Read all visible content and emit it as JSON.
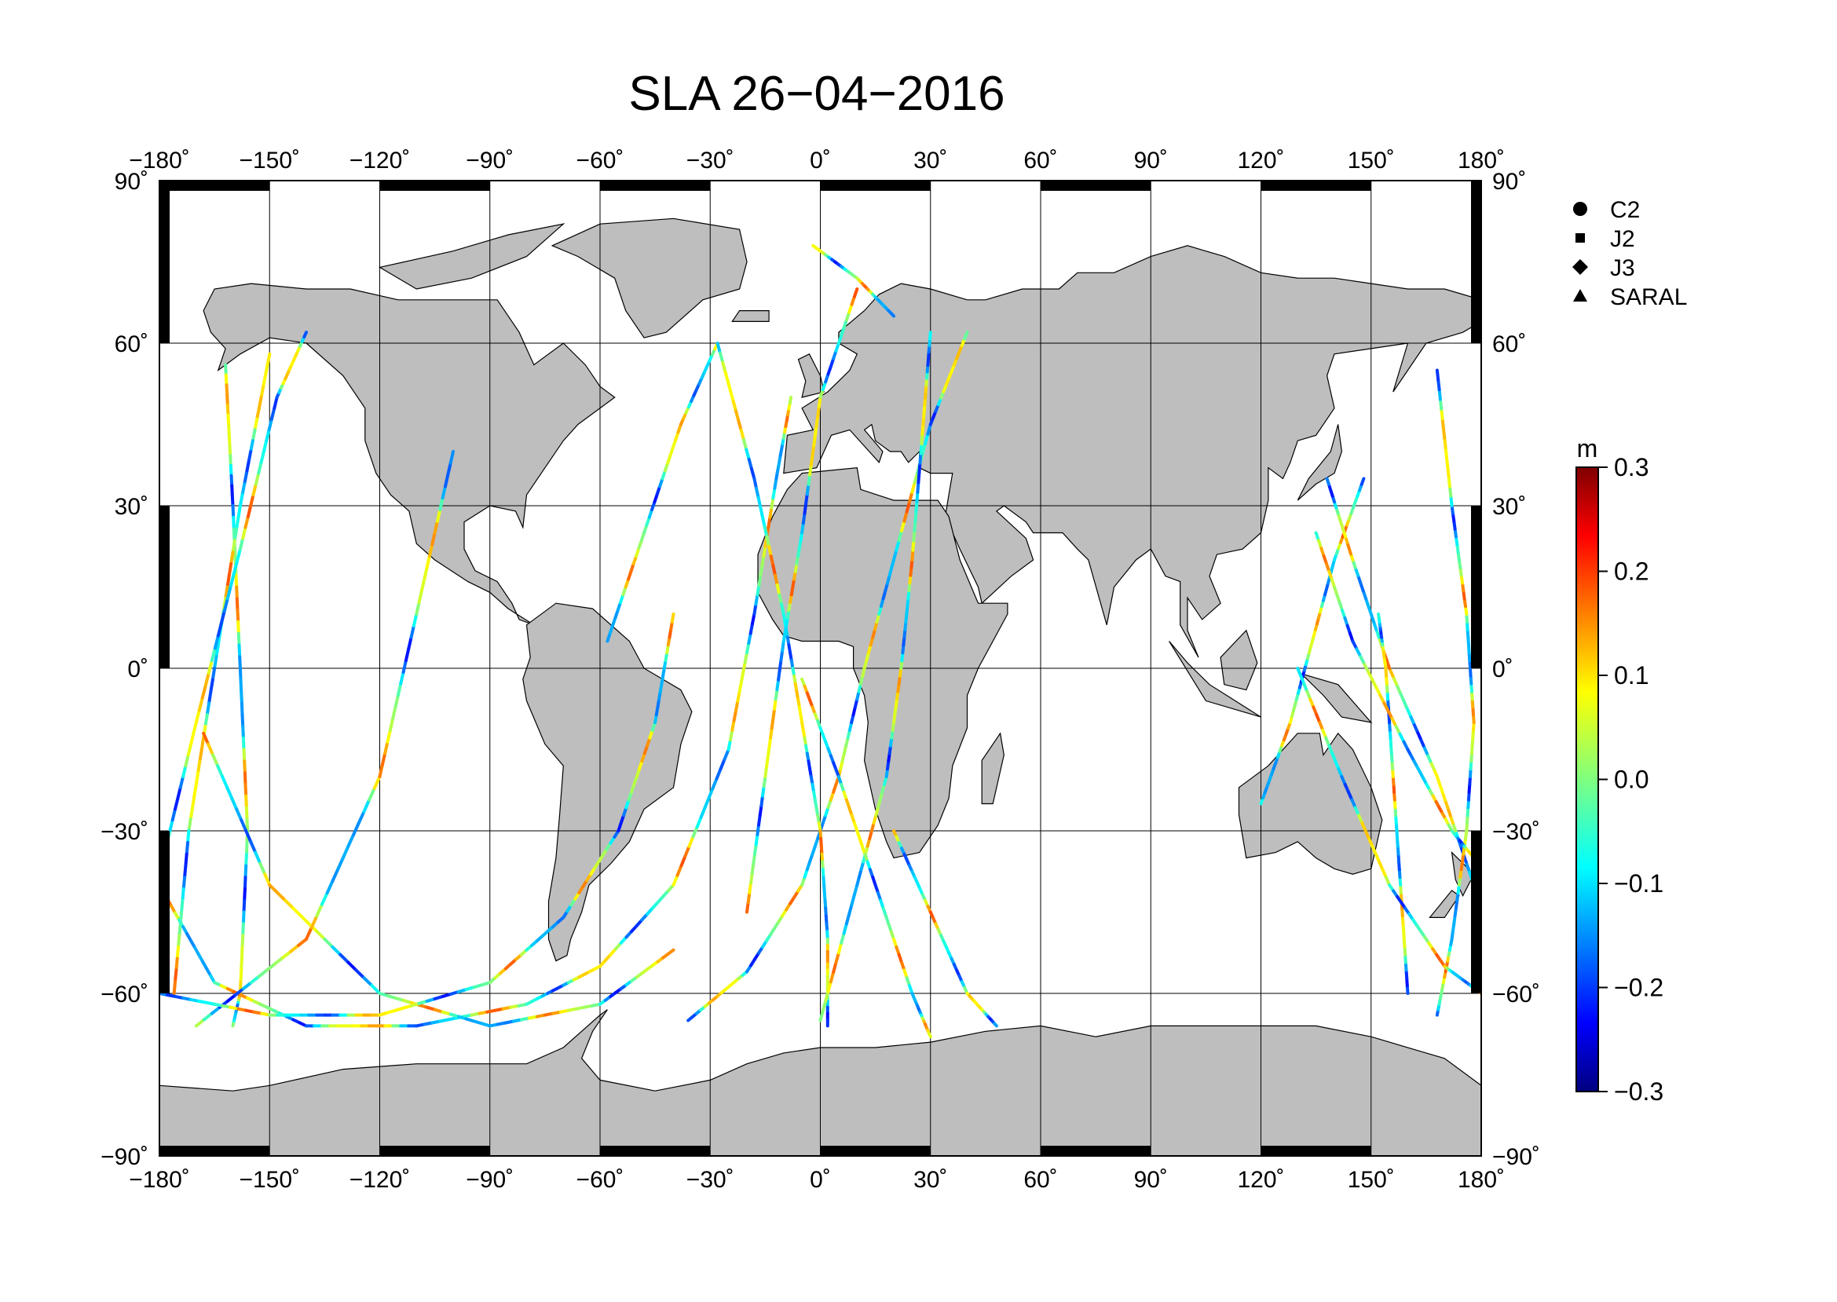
{
  "title": "SLA 26−04−2016",
  "map": {
    "lon_range": [
      -180,
      180
    ],
    "lat_range": [
      -90,
      90
    ],
    "lon_ticks": [
      -180,
      -150,
      -120,
      -90,
      -60,
      -30,
      0,
      30,
      60,
      90,
      120,
      150,
      180
    ],
    "lat_ticks": [
      90,
      60,
      30,
      0,
      -30,
      -60,
      -90
    ],
    "lon_tick_labels": [
      "−180",
      "−150",
      "−120",
      "−90",
      "−60",
      "−30",
      "0",
      "30",
      "60",
      "90",
      "120",
      "150",
      "180"
    ],
    "lat_tick_labels": [
      "90",
      "60",
      "30",
      "0",
      "−30",
      "−60",
      "−90"
    ],
    "degree_symbol": "˚",
    "land_color": "#bebebe",
    "ocean_color": "#ffffff",
    "grid": true
  },
  "legend": {
    "placement": "top-right",
    "items": [
      {
        "label": "C2",
        "symbol": "circle"
      },
      {
        "label": "J2",
        "symbol": "square"
      },
      {
        "label": "J3",
        "symbol": "diamond"
      },
      {
        "label": "SARAL",
        "symbol": "triangle"
      }
    ]
  },
  "colorbar": {
    "unit": "m",
    "range": [
      -0.3,
      0.3
    ],
    "tick_labels": [
      "0.3",
      "0.2",
      "0.1",
      "0.0",
      "−0.1",
      "−0.2",
      "−0.3"
    ],
    "tick_values": [
      0.3,
      0.2,
      0.1,
      0.0,
      -0.1,
      -0.2,
      -0.3
    ]
  },
  "chart_data": {
    "type": "scatter",
    "title": "SLA 26−04−2016",
    "variable": "SLA",
    "unit": "m",
    "xlim": [
      -180,
      180
    ],
    "ylim": [
      -90,
      90
    ],
    "tracks": [
      {
        "pts": [
          [
            -162,
            56
          ],
          [
            -160,
            30
          ],
          [
            -158,
            0
          ],
          [
            -156,
            -30
          ],
          [
            -158,
            -60
          ],
          [
            -160,
            -66
          ]
        ]
      },
      {
        "pts": [
          [
            -150,
            58
          ],
          [
            -158,
            30
          ],
          [
            -165,
            0
          ],
          [
            -172,
            -30
          ],
          [
            -176,
            -60
          ]
        ]
      },
      {
        "pts": [
          [
            -180,
            -40
          ],
          [
            -165,
            -58
          ],
          [
            -140,
            -66
          ],
          [
            -110,
            -66
          ],
          [
            -80,
            -62
          ],
          [
            -60,
            -55
          ],
          [
            -40,
            -40
          ],
          [
            -25,
            -15
          ],
          [
            -18,
            10
          ],
          [
            -12,
            35
          ],
          [
            -8,
            50
          ]
        ]
      },
      {
        "pts": [
          [
            -168,
            -12
          ],
          [
            -150,
            -40
          ],
          [
            -120,
            -60
          ],
          [
            -90,
            -66
          ],
          [
            -60,
            -62
          ],
          [
            -40,
            -52
          ]
        ]
      },
      {
        "pts": [
          [
            -180,
            -38
          ],
          [
            -170,
            -10
          ],
          [
            -158,
            22
          ],
          [
            -148,
            50
          ],
          [
            -140,
            62
          ]
        ]
      },
      {
        "pts": [
          [
            -170,
            -66
          ],
          [
            -140,
            -50
          ],
          [
            -120,
            -20
          ],
          [
            -110,
            10
          ],
          [
            -100,
            40
          ]
        ]
      },
      {
        "pts": [
          [
            -180,
            -60
          ],
          [
            -150,
            -64
          ],
          [
            -120,
            -64
          ],
          [
            -90,
            -58
          ],
          [
            -70,
            -46
          ],
          [
            -55,
            -30
          ],
          [
            -45,
            -10
          ],
          [
            -40,
            10
          ]
        ]
      },
      {
        "pts": [
          [
            -58,
            5
          ],
          [
            -48,
            25
          ],
          [
            -38,
            45
          ],
          [
            -28,
            60
          ]
        ]
      },
      {
        "pts": [
          [
            -36,
            -65
          ],
          [
            -20,
            -56
          ],
          [
            -5,
            -40
          ],
          [
            5,
            -20
          ],
          [
            12,
            0
          ],
          [
            20,
            20
          ],
          [
            30,
            45
          ],
          [
            40,
            62
          ]
        ]
      },
      {
        "pts": [
          [
            -28,
            60
          ],
          [
            -18,
            35
          ],
          [
            -10,
            10
          ],
          [
            -5,
            -10
          ],
          [
            0,
            -30
          ],
          [
            2,
            -50
          ],
          [
            2,
            -66
          ]
        ]
      },
      {
        "pts": [
          [
            0,
            -65
          ],
          [
            10,
            -40
          ],
          [
            18,
            -20
          ],
          [
            22,
            0
          ],
          [
            25,
            20
          ],
          [
            28,
            45
          ],
          [
            30,
            62
          ]
        ]
      },
      {
        "pts": [
          [
            -5,
            -2
          ],
          [
            5,
            -20
          ],
          [
            15,
            -40
          ],
          [
            25,
            -60
          ],
          [
            30,
            -68
          ]
        ]
      },
      {
        "pts": [
          [
            -20,
            -45
          ],
          [
            -15,
            -20
          ],
          [
            -10,
            5
          ],
          [
            -5,
            25
          ],
          [
            0,
            50
          ],
          [
            10,
            70
          ]
        ]
      },
      {
        "pts": [
          [
            -2,
            78
          ],
          [
            10,
            72
          ],
          [
            20,
            65
          ]
        ]
      },
      {
        "pts": [
          [
            20,
            -30
          ],
          [
            30,
            -45
          ],
          [
            40,
            -60
          ],
          [
            48,
            -66
          ]
        ]
      },
      {
        "pts": [
          [
            120,
            -25
          ],
          [
            128,
            -10
          ],
          [
            134,
            5
          ],
          [
            140,
            20
          ],
          [
            148,
            35
          ]
        ]
      },
      {
        "pts": [
          [
            178,
            -40
          ],
          [
            168,
            -20
          ],
          [
            155,
            0
          ],
          [
            145,
            20
          ],
          [
            138,
            35
          ]
        ]
      },
      {
        "pts": [
          [
            160,
            -60
          ],
          [
            158,
            -40
          ],
          [
            156,
            -20
          ],
          [
            154,
            0
          ],
          [
            152,
            10
          ]
        ]
      },
      {
        "pts": [
          [
            168,
            -64
          ],
          [
            172,
            -50
          ],
          [
            176,
            -30
          ],
          [
            178,
            -10
          ],
          [
            176,
            10
          ],
          [
            172,
            30
          ],
          [
            168,
            55
          ]
        ]
      },
      {
        "pts": [
          [
            130,
            0
          ],
          [
            142,
            -20
          ],
          [
            155,
            -40
          ],
          [
            170,
            -55
          ],
          [
            180,
            -60
          ]
        ]
      },
      {
        "pts": [
          [
            135,
            25
          ],
          [
            145,
            5
          ],
          [
            160,
            -15
          ],
          [
            172,
            -30
          ],
          [
            178,
            -35
          ]
        ]
      }
    ]
  }
}
